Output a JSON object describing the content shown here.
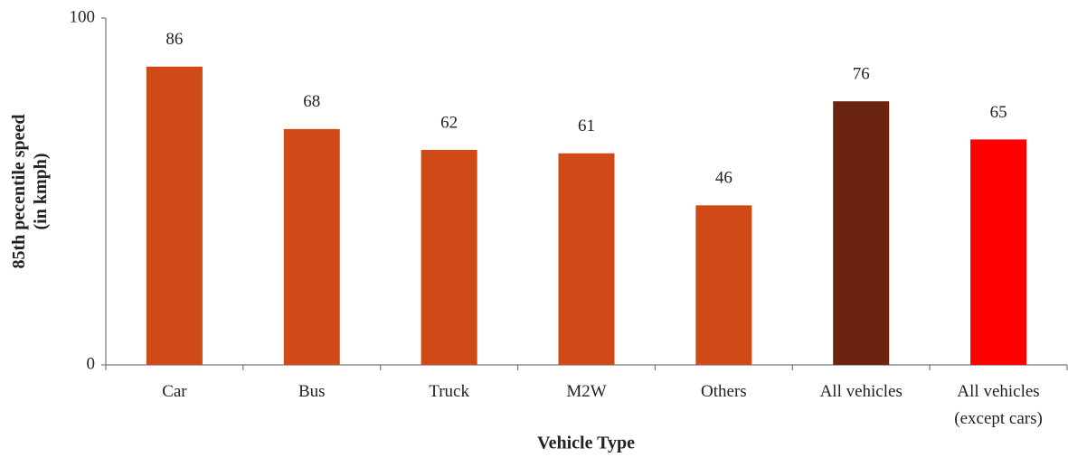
{
  "chart_data": {
    "type": "bar",
    "categories": [
      "Car",
      "Bus",
      "Truck",
      "M2W",
      "Others",
      "All vehicles",
      "All vehicles\n(except cars)"
    ],
    "values": [
      86,
      68,
      62,
      61,
      46,
      76,
      65
    ],
    "colors": [
      "#d04a17",
      "#d04a17",
      "#d04a17",
      "#d04a17",
      "#d04a17",
      "#6b2410",
      "#ff0000"
    ],
    "ylim": [
      0,
      100
    ],
    "yticks": [
      0,
      100
    ],
    "y_label": "85th pecentile speed\n(in kmph)",
    "x_label": "Vehicle Type"
  }
}
